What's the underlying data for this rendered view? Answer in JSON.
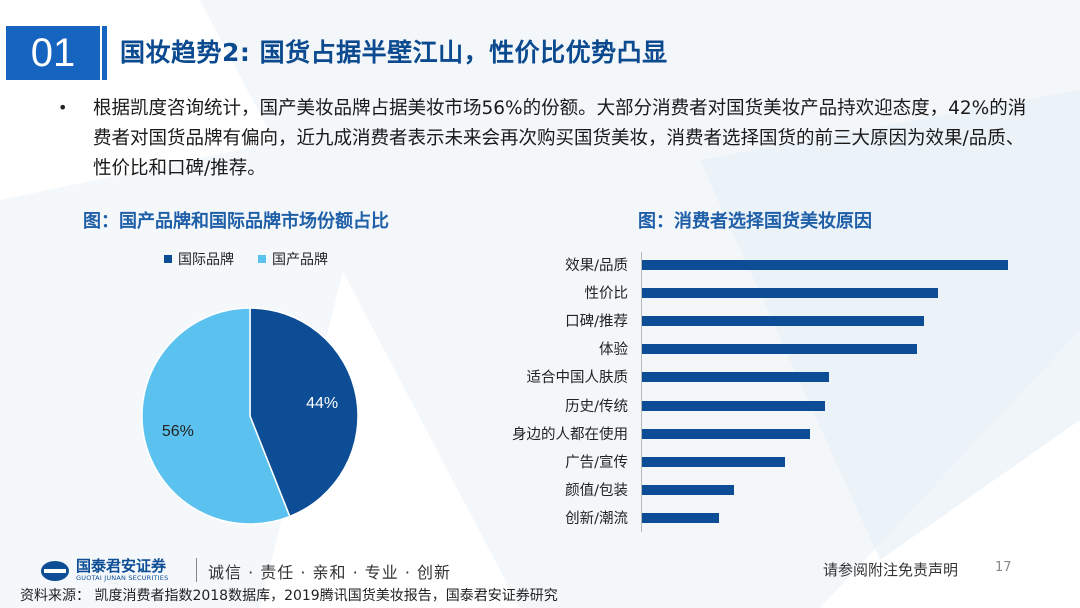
{
  "header": {
    "section_number": "01",
    "title": "国妆趋势2: 国货占据半壁江山，性价比优势凸显"
  },
  "bullet": {
    "text": "根据凯度咨询统计，国产美妆品牌占据美妆市场56%的份额。大部分消费者对国货美妆产品持欢迎态度，42%的消费者对国货品牌有偏向，近九成消费者表示未来会再次购买国货美妆，消费者选择国货的前三大原因为效果/品质、性价比和口碑/推荐。"
  },
  "left_figure": {
    "title": "图：国产品牌和国际品牌市场份额占比"
  },
  "right_figure": {
    "title": "图：消费者选择国货美妆原因"
  },
  "chart_data": [
    {
      "type": "pie",
      "categories": [
        "国际品牌",
        "国产品牌"
      ],
      "values": [
        44,
        56
      ],
      "labels": [
        "44%",
        "56%"
      ],
      "colors": [
        "#0d4d96",
        "#5bc2ef"
      ],
      "legend_position": "top"
    },
    {
      "type": "bar",
      "orientation": "horizontal",
      "categories": [
        "效果/品质",
        "性价比",
        "口碑/推荐",
        "体验",
        "适合中国人肤质",
        "历史/传统",
        "身边的人都在使用",
        "广告/宣传",
        "颜值/包装",
        "创新/潮流"
      ],
      "values": [
        100,
        81,
        77,
        75,
        51,
        50,
        46,
        39,
        25,
        21
      ],
      "colors": [
        "#0d4d96"
      ]
    }
  ],
  "footer": {
    "logo_cn": "国泰君安证券",
    "logo_en": "GUOTAI JUNAN SECURITIES",
    "slogan": "诚信 · 责任 · 亲和 · 专业 · 创新",
    "disclaimer": "请参阅附注免责声明",
    "page_number": "17",
    "source": "资料来源： 凯度消费者指数2018数据库，2019腾讯国货美妆报告，国泰君安证券研究"
  }
}
